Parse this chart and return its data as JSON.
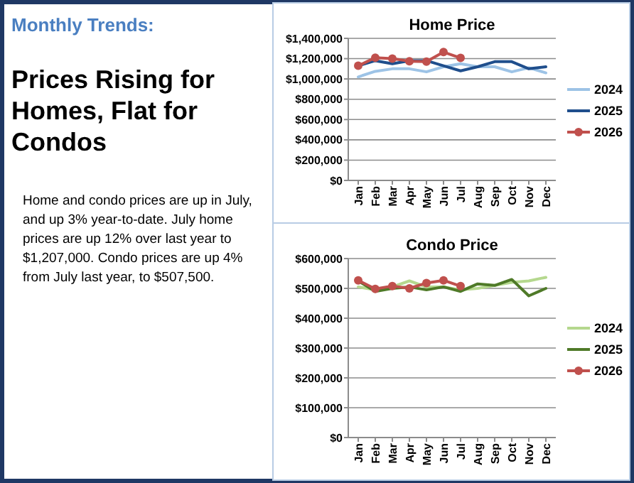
{
  "chart_data": [
    {
      "type": "other",
      "title": "Monthly Trends:",
      "subtitle": "Prices Rising for Homes, Flat for Condos",
      "annotations": [
        "Home and condo prices are up in July, and up 3% year-to-date. July home prices are up 12% over last year to $1,207,000. Condo prices are up 4% from July last year, to $507,500."
      ]
    },
    {
      "type": "line",
      "title": "Home Price",
      "categories": [
        "Jan",
        "Feb",
        "Mar",
        "Apr",
        "May",
        "Jun",
        "Jul",
        "Aug",
        "Sep",
        "Oct",
        "Nov",
        "Dec"
      ],
      "series": [
        {
          "name": "2024",
          "color": "#9dc3e6",
          "marker": "none",
          "values": [
            1020000,
            1075000,
            1100000,
            1100000,
            1070000,
            1120000,
            1150000,
            1120000,
            1120000,
            1070000,
            1110000,
            1060000
          ]
        },
        {
          "name": "2025",
          "color": "#1f4e8c",
          "marker": "none",
          "values": [
            1130000,
            1180000,
            1150000,
            1180000,
            1180000,
            1130000,
            1080000,
            1120000,
            1170000,
            1170000,
            1100000,
            1120000
          ]
        },
        {
          "name": "2026",
          "color": "#c0504d",
          "marker": "circle",
          "values": [
            1130000,
            1210000,
            1200000,
            1175000,
            1170000,
            1265000,
            1207000,
            null,
            null,
            null,
            null,
            null
          ]
        }
      ],
      "ylim": [
        0,
        1400000
      ],
      "yticks": [
        {
          "value": 0,
          "label": "$0"
        },
        {
          "value": 200000,
          "label": "$200,000"
        },
        {
          "value": 400000,
          "label": "$400,000"
        },
        {
          "value": 600000,
          "label": "$600,000"
        },
        {
          "value": 800000,
          "label": "$800,000"
        },
        {
          "value": 1000000,
          "label": "$1,000,000"
        },
        {
          "value": 1200000,
          "label": "$1,200,000"
        },
        {
          "value": 1400000,
          "label": "$1,400,000"
        }
      ],
      "grid": "y",
      "legend": "right"
    },
    {
      "type": "line",
      "title": "Condo Price",
      "categories": [
        "Jan",
        "Feb",
        "Mar",
        "Apr",
        "May",
        "Jun",
        "Jul",
        "Aug",
        "Sep",
        "Oct",
        "Nov",
        "Dec"
      ],
      "series": [
        {
          "name": "2024",
          "color": "#b5d88e",
          "marker": "none",
          "values": [
            505000,
            495000,
            505000,
            525000,
            505000,
            505000,
            495000,
            500000,
            510000,
            520000,
            525000,
            537000
          ]
        },
        {
          "name": "2025",
          "color": "#4f7a28",
          "marker": "none",
          "values": [
            525000,
            490000,
            500000,
            505000,
            495000,
            505000,
            490000,
            515000,
            510000,
            530000,
            475000,
            500000
          ]
        },
        {
          "name": "2026",
          "color": "#c0504d",
          "marker": "circle",
          "values": [
            527000,
            498000,
            508000,
            500000,
            518000,
            527000,
            507500,
            null,
            null,
            null,
            null,
            null
          ]
        }
      ],
      "ylim": [
        0,
        600000
      ],
      "yticks": [
        {
          "value": 0,
          "label": "$0"
        },
        {
          "value": 100000,
          "label": "$100,000"
        },
        {
          "value": 200000,
          "label": "$200,000"
        },
        {
          "value": 300000,
          "label": "$300,000"
        },
        {
          "value": 400000,
          "label": "$400,000"
        },
        {
          "value": 500000,
          "label": "$500,000"
        },
        {
          "value": 600000,
          "label": "$600,000"
        }
      ],
      "grid": "y",
      "legend": "right"
    }
  ]
}
